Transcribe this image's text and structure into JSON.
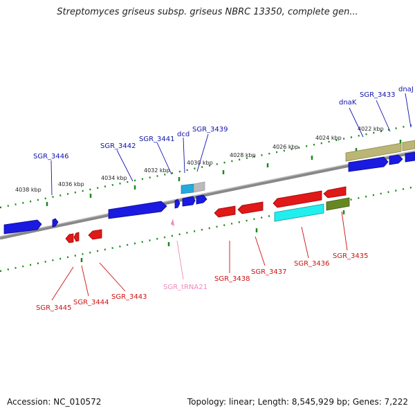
{
  "title": "Streptomyces griseus subsp. griseus NBRC 13350, complete gen...",
  "footer": {
    "accession": "Accession: NC_010572",
    "summary": "Topology: linear; Length: 8,545,929 bp; Genes: 7,222"
  },
  "colors": {
    "forward_gene": "#1010dd",
    "reverse_gene": "#e01818",
    "forward_label": "#1010aa",
    "reverse_label": "#cc1111",
    "trna": "#ee88bb",
    "ticks": "#1a8a1a",
    "backbone": "#777777"
  },
  "scale_ticks": [
    "4038 kbp",
    "4036 kbp",
    "4034 kbp",
    "4032 kbp",
    "4030 kbp",
    "4028 kbp",
    "4026 kbp",
    "4024 kbp",
    "4022 kbp"
  ],
  "forward_labels": [
    "SGR_3446",
    "SGR_3442",
    "SGR_3441",
    "dcd",
    "SGR_3439",
    "dnaK",
    "SGR_3433",
    "dnaJ"
  ],
  "reverse_labels": [
    "SGR_3445",
    "SGR_3444",
    "SGR_3443",
    "SGR_tRNA21",
    "SGR_3438",
    "SGR_3437",
    "SGR_3436",
    "SGR_3435"
  ]
}
